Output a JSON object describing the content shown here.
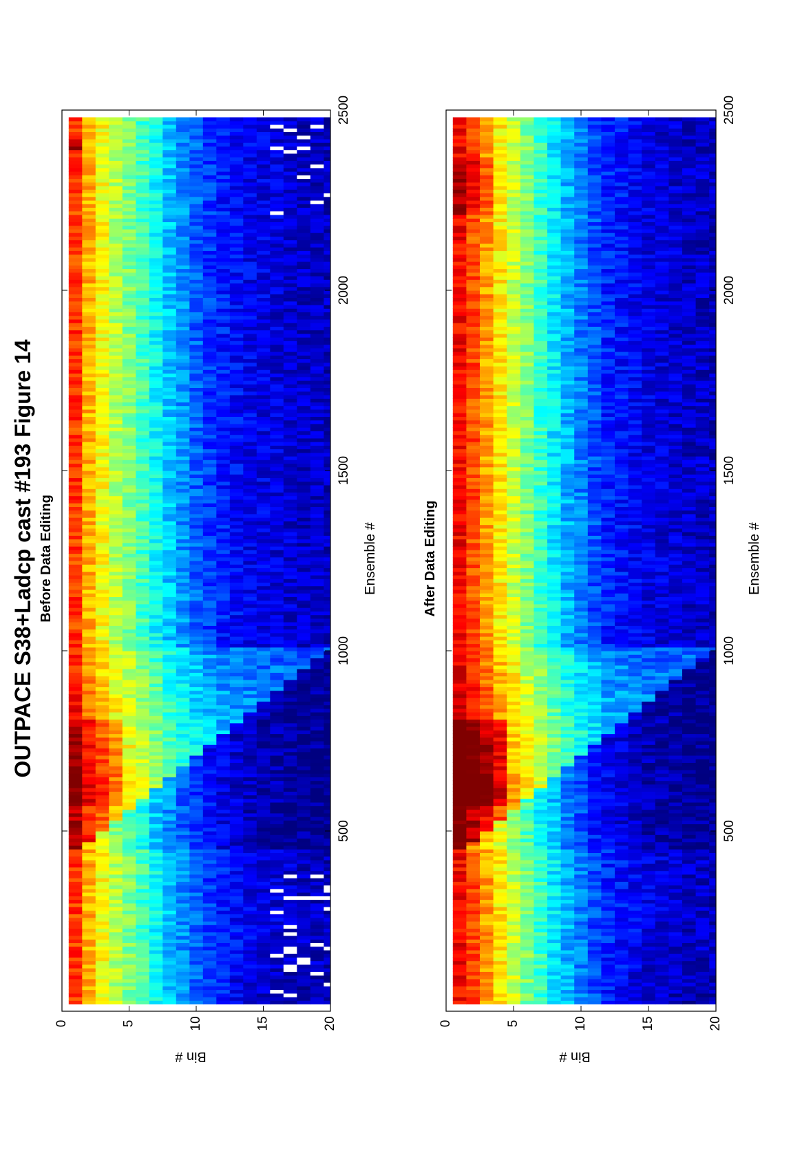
{
  "figure": {
    "title": "OUTPACE S38+Ladcp cast #193  Figure 14"
  },
  "colors": {
    "colormap": "jet",
    "stops": [
      "#00008f",
      "#0000ff",
      "#00ffff",
      "#ffff00",
      "#ff0000",
      "#800000"
    ],
    "missing": "#ffffff"
  },
  "chart_data": [
    {
      "type": "heatmap",
      "title": "Before Data Editing",
      "xlabel": "Ensemble #",
      "ylabel": "Bin #",
      "xlim": [
        0,
        2500
      ],
      "ylim": [
        0,
        20
      ],
      "xticks": [
        500,
        1000,
        1500,
        2000,
        2500
      ],
      "yticks": [
        0,
        5,
        10,
        15,
        20
      ],
      "description_of_values": "normalized echo intensity (0=low/blue, 1=high/red)",
      "bin_profile_shallow": [
        0.82,
        0.7,
        0.62,
        0.55,
        0.5,
        0.44,
        0.38,
        0.32,
        0.27,
        0.22,
        0.18,
        0.15,
        0.13,
        0.11,
        0.1,
        0.09,
        0.08,
        0.07,
        0.07,
        0.06
      ],
      "features": [
        {
          "ensembles": [
            20,
            380
          ],
          "note": "first descent, scattered missing values in bins 16-20"
        },
        {
          "ensembles": [
            450,
            1000
          ],
          "note": "wedge of elevated intensity deepening with ensemble"
        },
        {
          "ensembles": [
            560,
            800
          ],
          "note": "high intensity near bins 1-3"
        },
        {
          "ensembles": [
            2380,
            2420
          ],
          "note": "very high intensity at bin 1"
        },
        {
          "ensembles": [
            2200,
            2500
          ],
          "note": "scattered missing values in bins 16-20"
        }
      ]
    },
    {
      "type": "heatmap",
      "title": "After Data Editing",
      "xlabel": "Ensemble #",
      "ylabel": "Bin #",
      "xlim": [
        0,
        2500
      ],
      "ylim": [
        0,
        20
      ],
      "xticks": [
        500,
        1000,
        1500,
        2000,
        2500
      ],
      "yticks": [
        0,
        5,
        10,
        15,
        20
      ],
      "description_of_values": "normalized echo intensity (0=low/blue, 1=high/red)",
      "bin_profile_shallow": [
        0.88,
        0.8,
        0.72,
        0.64,
        0.57,
        0.5,
        0.43,
        0.36,
        0.3,
        0.25,
        0.2,
        0.16,
        0.14,
        0.12,
        0.1,
        0.09,
        0.08,
        0.07,
        0.07,
        0.06
      ],
      "features": [
        {
          "ensembles": [
            20,
            380
          ],
          "note": "first descent, few missing values"
        },
        {
          "ensembles": [
            450,
            1000
          ],
          "note": "wedge of elevated intensity deepening with ensemble"
        },
        {
          "ensembles": [
            560,
            800
          ],
          "note": "very high intensity (red) near bins 1-4"
        },
        {
          "ensembles": [
            2200,
            2360
          ],
          "note": "high intensity near bins 1-3"
        }
      ]
    }
  ]
}
